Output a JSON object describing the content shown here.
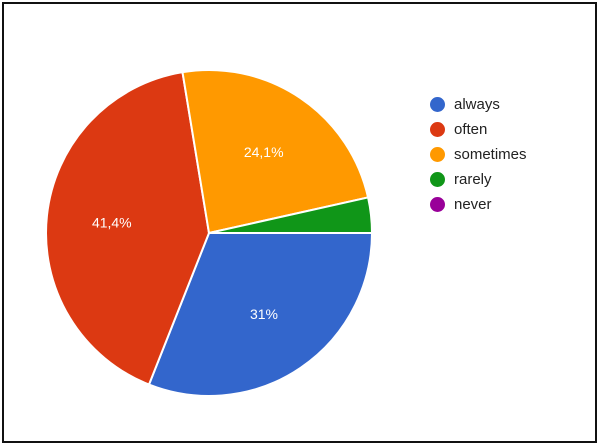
{
  "chart_data": {
    "type": "pie",
    "categories": [
      "always",
      "often",
      "sometimes",
      "rarely",
      "never"
    ],
    "values": [
      31.0,
      41.4,
      24.1,
      3.5,
      0.0
    ],
    "data_labels": [
      "31%",
      "41,4%",
      "24,1%",
      "",
      ""
    ],
    "colors": [
      "#3366cc",
      "#dc3912",
      "#ff9900",
      "#109618",
      "#990099"
    ],
    "legend_position": "right",
    "title": ""
  }
}
